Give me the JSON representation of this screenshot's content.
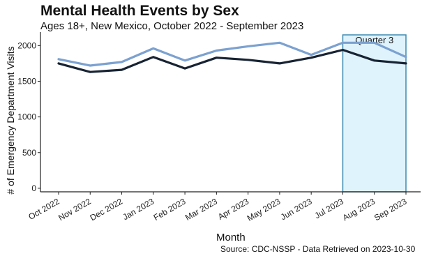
{
  "chart_data": {
    "type": "line",
    "title": "Mental Health Events by Sex",
    "subtitle": "Ages 18+, New Mexico, October 2022 - September 2023",
    "xlabel": "Month",
    "ylabel": "# of Emergency Department Visits",
    "categories": [
      "Oct 2022",
      "Nov 2022",
      "Dec 2022",
      "Jan 2023",
      "Feb 2023",
      "Mar 2023",
      "Apr 2023",
      "May 2023",
      "Jun 2023",
      "Jul 2023",
      "Aug 2023",
      "Sep 2023"
    ],
    "series": [
      {
        "color": "#7ba1d0",
        "values": [
          1810,
          1720,
          1770,
          1960,
          1790,
          1930,
          1990,
          2040,
          1870,
          2040,
          2040,
          1840
        ]
      },
      {
        "color": "#172333",
        "values": [
          1750,
          1630,
          1660,
          1840,
          1680,
          1830,
          1800,
          1750,
          1830,
          1940,
          1790,
          1750
        ]
      }
    ],
    "yticks": [
      0,
      500,
      1000,
      1500,
      2000
    ],
    "ylim": [
      -50,
      2150
    ],
    "highlight": {
      "label": "Quarter 3",
      "from": "Jul 2023",
      "to": "Sep 2023",
      "fill": "#dff3fc",
      "stroke": "#3a8ab0"
    },
    "source": "Source: CDC-NSSP - Data Retrieved on 2023-10-30",
    "grid": false,
    "legend": "none"
  }
}
